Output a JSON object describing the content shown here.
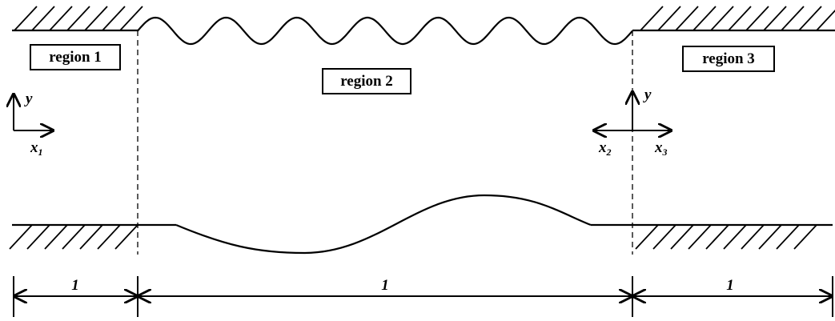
{
  "regions": [
    "region 1",
    "region 2",
    "region 3"
  ],
  "axes_left": {
    "y": "y",
    "x": {
      "main": "x",
      "sub": "1"
    }
  },
  "axes_right": {
    "y": "y",
    "x_left": {
      "main": "x",
      "sub": "2"
    },
    "x_right": {
      "main": "x",
      "sub": "3"
    }
  },
  "lengths": [
    "1",
    "1",
    "1"
  ]
}
